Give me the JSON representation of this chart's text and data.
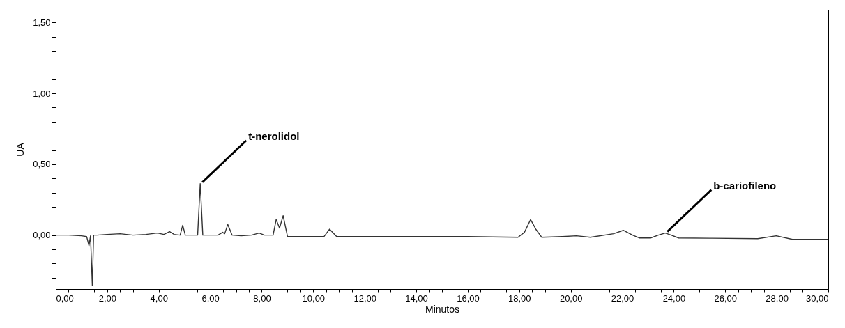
{
  "chart_data": {
    "type": "line",
    "xlabel": "Minutos",
    "ylabel": "UA",
    "x": [
      0,
      0.5,
      1.0,
      1.2,
      1.29,
      1.35,
      1.42,
      1.47,
      1.6,
      2.0,
      2.5,
      3.0,
      3.5,
      3.95,
      4.2,
      4.42,
      4.6,
      4.83,
      4.93,
      5.03,
      5.3,
      5.51,
      5.61,
      5.71,
      5.9,
      6.3,
      6.48,
      6.56,
      6.68,
      6.85,
      7.2,
      7.6,
      7.9,
      8.1,
      8.44,
      8.56,
      8.69,
      8.83,
      9.0,
      9.5,
      10.0,
      10.42,
      10.63,
      10.91,
      12.0,
      14.0,
      16.0,
      17.95,
      18.2,
      18.44,
      18.65,
      18.87,
      19.67,
      20.22,
      20.76,
      21.66,
      22.04,
      22.4,
      22.66,
      23.1,
      23.4,
      23.67,
      23.9,
      24.19,
      25.5,
      27.26,
      27.98,
      28.61,
      30.0
    ],
    "series": [
      {
        "color": "#333333",
        "values": [
          0,
          0,
          -0.005,
          -0.01,
          -0.075,
          -0.005,
          -0.355,
          0,
          0,
          0.005,
          0.01,
          0,
          0.005,
          0.015,
          0.005,
          0.025,
          0.005,
          0,
          0.07,
          0,
          0,
          0,
          0.363,
          0,
          0,
          0,
          0.02,
          0.01,
          0.075,
          0,
          -0.005,
          0,
          0.015,
          0,
          0,
          0.11,
          0.05,
          0.137,
          -0.01,
          -0.01,
          -0.01,
          -0.01,
          0.042,
          -0.01,
          -0.01,
          -0.01,
          -0.01,
          -0.015,
          0.02,
          0.11,
          0.04,
          -0.015,
          -0.01,
          -0.005,
          -0.015,
          0.01,
          0.034,
          0.0,
          -0.02,
          -0.02,
          0.0,
          0.015,
          0.0,
          -0.02,
          -0.022,
          -0.025,
          -0.005,
          -0.03,
          -0.03
        ]
      }
    ],
    "xlim": [
      0,
      30
    ],
    "ylim": [
      -0.38,
      1.59
    ],
    "xticks": [
      {
        "value": 0,
        "label": "0,00"
      },
      {
        "value": 0.5,
        "label": null
      },
      {
        "value": 1,
        "label": null
      },
      {
        "value": 1.5,
        "label": null
      },
      {
        "value": 2,
        "label": "2,00"
      },
      {
        "value": 2.5,
        "label": null
      },
      {
        "value": 3,
        "label": null
      },
      {
        "value": 3.5,
        "label": null
      },
      {
        "value": 4,
        "label": "4,00"
      },
      {
        "value": 4.5,
        "label": null
      },
      {
        "value": 5,
        "label": null
      },
      {
        "value": 5.5,
        "label": null
      },
      {
        "value": 6,
        "label": "6,00"
      },
      {
        "value": 6.5,
        "label": null
      },
      {
        "value": 7,
        "label": null
      },
      {
        "value": 7.5,
        "label": null
      },
      {
        "value": 8,
        "label": "8,00"
      },
      {
        "value": 8.5,
        "label": null
      },
      {
        "value": 9,
        "label": null
      },
      {
        "value": 9.5,
        "label": null
      },
      {
        "value": 10,
        "label": "10,00"
      },
      {
        "value": 10.5,
        "label": null
      },
      {
        "value": 11,
        "label": null
      },
      {
        "value": 11.5,
        "label": null
      },
      {
        "value": 12,
        "label": "12,00"
      },
      {
        "value": 12.5,
        "label": null
      },
      {
        "value": 13,
        "label": null
      },
      {
        "value": 13.5,
        "label": null
      },
      {
        "value": 14,
        "label": "14,00"
      },
      {
        "value": 14.5,
        "label": null
      },
      {
        "value": 15,
        "label": null
      },
      {
        "value": 15.5,
        "label": null
      },
      {
        "value": 16,
        "label": "16,00"
      },
      {
        "value": 16.5,
        "label": null
      },
      {
        "value": 17,
        "label": null
      },
      {
        "value": 17.5,
        "label": null
      },
      {
        "value": 18,
        "label": "18,00"
      },
      {
        "value": 18.5,
        "label": null
      },
      {
        "value": 19,
        "label": null
      },
      {
        "value": 19.5,
        "label": null
      },
      {
        "value": 20,
        "label": "20,00"
      },
      {
        "value": 20.5,
        "label": null
      },
      {
        "value": 21,
        "label": null
      },
      {
        "value": 21.5,
        "label": null
      },
      {
        "value": 22,
        "label": "22,00"
      },
      {
        "value": 22.5,
        "label": null
      },
      {
        "value": 23,
        "label": null
      },
      {
        "value": 23.5,
        "label": null
      },
      {
        "value": 24,
        "label": "24,00"
      },
      {
        "value": 24.5,
        "label": null
      },
      {
        "value": 25,
        "label": null
      },
      {
        "value": 25.5,
        "label": null
      },
      {
        "value": 26,
        "label": "26,00"
      },
      {
        "value": 26.5,
        "label": null
      },
      {
        "value": 27,
        "label": null
      },
      {
        "value": 27.5,
        "label": null
      },
      {
        "value": 28,
        "label": "28,00"
      },
      {
        "value": 28.5,
        "label": null
      },
      {
        "value": 29,
        "label": null
      },
      {
        "value": 29.5,
        "label": null
      },
      {
        "value": 30,
        "label": "30,00"
      }
    ],
    "yticks": [
      {
        "value": -0.3,
        "label": null
      },
      {
        "value": -0.2,
        "label": null
      },
      {
        "value": -0.1,
        "label": null
      },
      {
        "value": 0,
        "label": "0,00"
      },
      {
        "value": 0.1,
        "label": null
      },
      {
        "value": 0.2,
        "label": null
      },
      {
        "value": 0.3,
        "label": null
      },
      {
        "value": 0.4,
        "label": null
      },
      {
        "value": 0.5,
        "label": "0,50"
      },
      {
        "value": 0.6,
        "label": null
      },
      {
        "value": 0.7,
        "label": null
      },
      {
        "value": 0.8,
        "label": null
      },
      {
        "value": 0.9,
        "label": null
      },
      {
        "value": 1,
        "label": "1,00"
      },
      {
        "value": 1.1,
        "label": null
      },
      {
        "value": 1.2,
        "label": null
      },
      {
        "value": 1.3,
        "label": null
      },
      {
        "value": 1.4,
        "label": null
      },
      {
        "value": 1.5,
        "label": "1,50"
      }
    ],
    "annotations": [
      {
        "text": "t-nerolidol",
        "x": 5.61,
        "y": 0.363
      },
      {
        "text": "b-cariofileno",
        "x": 23.67,
        "y": 0.015
      }
    ],
    "grid": false,
    "marker": "none",
    "line_style": "solid"
  }
}
